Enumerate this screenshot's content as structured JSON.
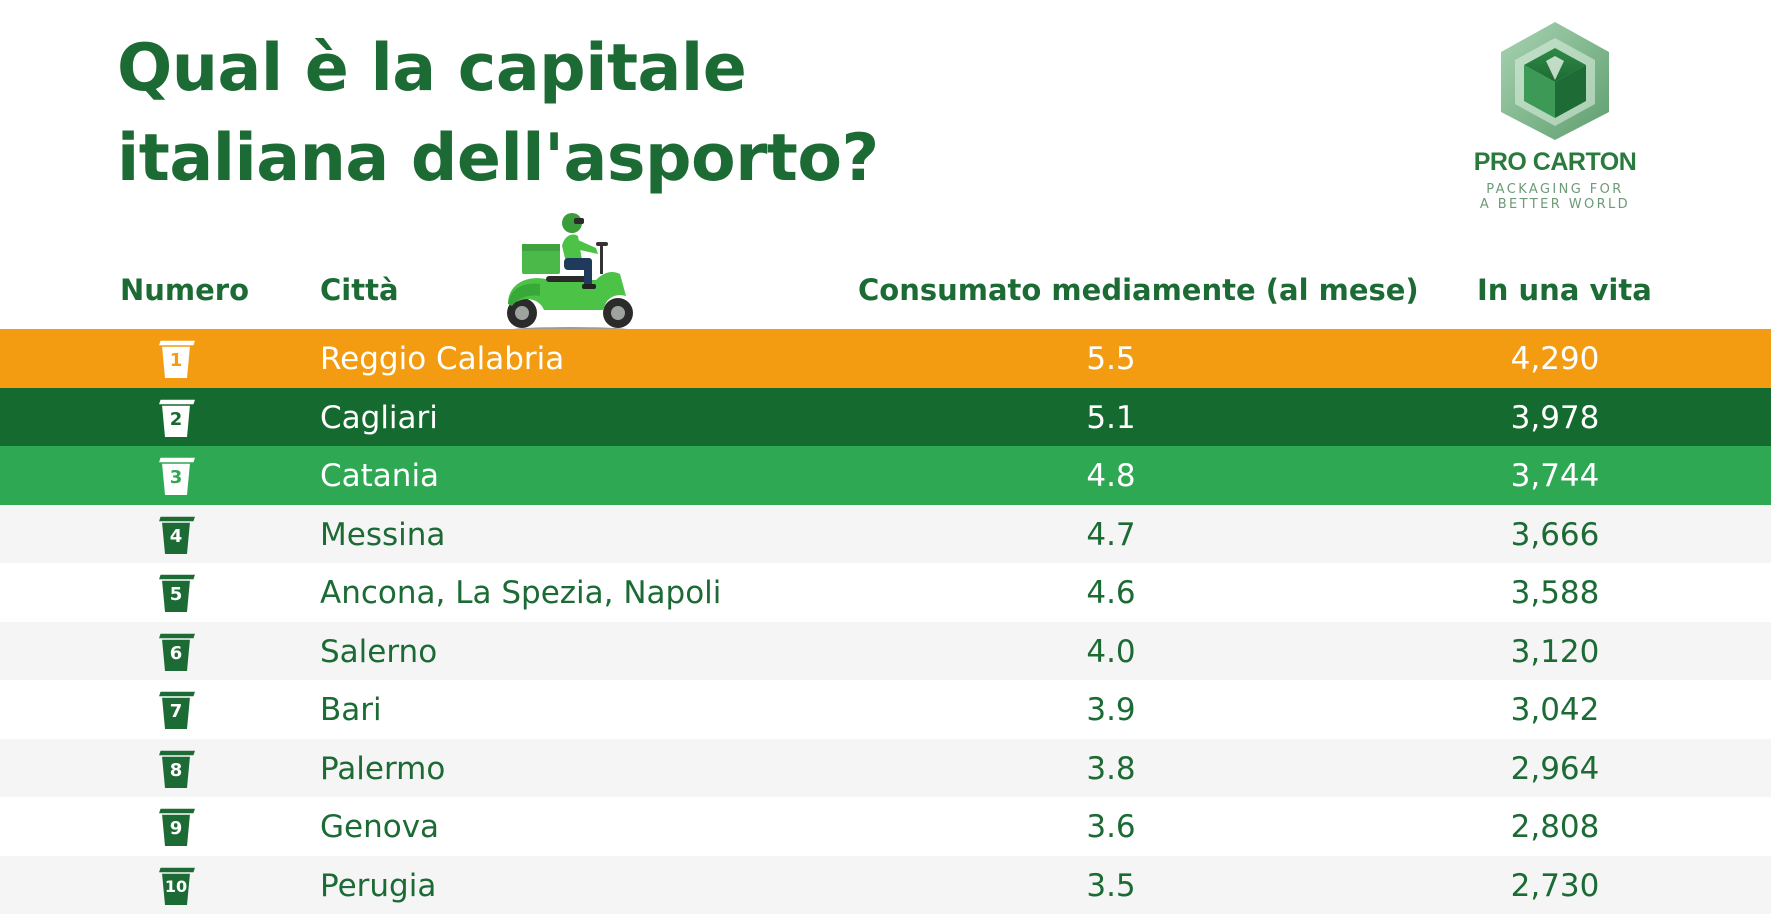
{
  "title": "Qual è la capitale italiana dell'asporto?",
  "brand": {
    "name": "PRO CARTON",
    "tagline_1": "PACKAGING FOR",
    "tagline_2": "A BETTER WORLD"
  },
  "table": {
    "headers": {
      "rank": "Numero",
      "city": "Città",
      "monthly": "Consumato mediamente (al mese)",
      "lifetime": "In una vita"
    },
    "rows": [
      {
        "rank": "1",
        "city": "Reggio Calabria",
        "monthly": "5.5",
        "lifetime": "4,290"
      },
      {
        "rank": "2",
        "city": "Cagliari",
        "monthly": "5.1",
        "lifetime": "3,978"
      },
      {
        "rank": "3",
        "city": "Catania",
        "monthly": "4.8",
        "lifetime": "3,744"
      },
      {
        "rank": "4",
        "city": "Messina",
        "monthly": "4.7",
        "lifetime": "3,666"
      },
      {
        "rank": "5",
        "city": "Ancona, La Spezia, Napoli",
        "monthly": "4.6",
        "lifetime": "3,588"
      },
      {
        "rank": "6",
        "city": "Salerno",
        "monthly": "4.0",
        "lifetime": "3,120"
      },
      {
        "rank": "7",
        "city": "Bari",
        "monthly": "3.9",
        "lifetime": "3,042"
      },
      {
        "rank": "8",
        "city": "Palermo",
        "monthly": "3.8",
        "lifetime": "2,964"
      },
      {
        "rank": "9",
        "city": "Genova",
        "monthly": "3.6",
        "lifetime": "2,808"
      },
      {
        "rank": "10",
        "city": "Perugia",
        "monthly": "3.5",
        "lifetime": "2,730"
      }
    ]
  },
  "colors": {
    "brand_green": "#1c6b35",
    "rank1": "#f39c12",
    "rank2": "#156a2f",
    "rank3": "#2ea853",
    "stripe": "#f5f5f5"
  },
  "icons": {
    "rank_badge": "takeaway-box-icon",
    "illustration": "delivery-scooter-icon",
    "logo": "pro-carton-cube-icon"
  }
}
